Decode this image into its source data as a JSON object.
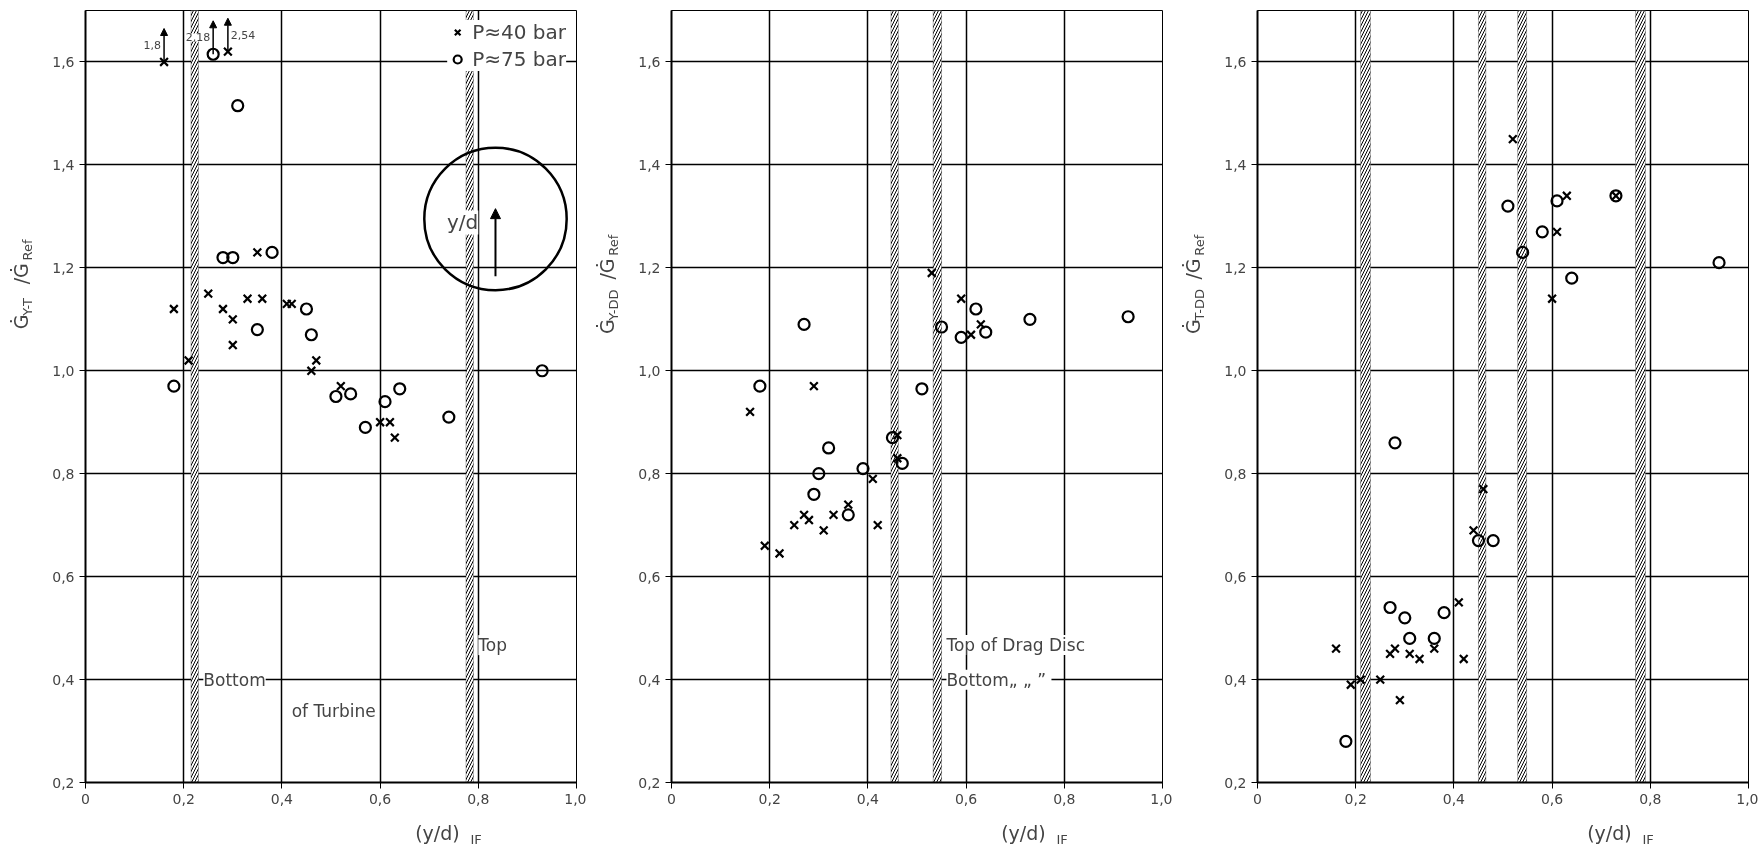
{
  "chart_data": [
    {
      "type": "scatter",
      "xlabel": "(y/d)$_{IF}$",
      "ylabel": "Ġ$_{Y-T}$/Ġ$_{Ref}$",
      "xlim": [
        0,
        1.0
      ],
      "ylim": [
        0.2,
        1.7
      ],
      "xticks": [
        0,
        {
          "value": 0.2,
          "label": "0,2"
        },
        {
          "value": 0.4,
          "label": "0,4"
        },
        {
          "value": 0.6,
          "label": "0,6"
        },
        {
          "value": 0.8,
          "label": "0,8"
        },
        {
          "value": 1.0,
          "label": "1,0"
        }
      ],
      "yticks": [
        {
          "value": 0.2,
          "label": "0,2"
        },
        {
          "value": 0.4,
          "label": "0,4"
        },
        {
          "value": 0.6,
          "label": "0,6"
        },
        {
          "value": 0.8,
          "label": "0,8"
        },
        {
          "value": 1.0,
          "label": "1,0"
        },
        {
          "value": 1.2,
          "label": "1,2"
        },
        {
          "value": 1.4,
          "label": "1,4"
        },
        {
          "value": 1.6,
          "label": "1,6"
        }
      ],
      "grid": true,
      "legend": "top right",
      "series": [
        {
          "name": "P≈40 bar",
          "color": "#000000",
          "marker": "cross",
          "x": [
            0.16,
            0.29,
            0.18,
            0.21,
            0.25,
            0.28,
            0.3,
            0.3,
            0.33,
            0.36,
            0.35,
            0.41,
            0.42,
            0.47,
            0.46,
            0.52,
            0.6,
            0.62,
            0.63
          ],
          "values": [
            1.6,
            1.62,
            1.12,
            1.02,
            1.15,
            1.12,
            1.1,
            1.05,
            1.14,
            1.14,
            1.23,
            1.13,
            1.13,
            1.02,
            1.0,
            0.97,
            0.9,
            0.9,
            0.87
          ]
        },
        {
          "name": "P≈75 bar",
          "color": "#000000",
          "marker": "circle",
          "x": [
            0.26,
            0.31,
            0.28,
            0.3,
            0.35,
            0.38,
            0.45,
            0.46,
            0.18,
            0.51,
            0.54,
            0.57,
            0.61,
            0.64,
            0.74,
            0.93
          ],
          "values": [
            1.615,
            1.515,
            1.22,
            1.22,
            1.08,
            1.23,
            1.12,
            1.07,
            0.97,
            0.95,
            0.955,
            0.89,
            0.94,
            0.965,
            0.91,
            1.0
          ]
        }
      ],
      "bands": [
        {
          "axis": "x",
          "from": 0.215,
          "to": 0.23,
          "label": "Bottom"
        },
        {
          "axis": "x",
          "from": 0.775,
          "to": 0.79,
          "label": "Top"
        }
      ],
      "annotations": [
        "of Turbine",
        "y/d",
        {
          "text": "1,8",
          "x": 0.16,
          "y": 1.6
        },
        {
          "text": "2,18",
          "x": 0.26,
          "y": 1.615
        },
        {
          "text": "2,54",
          "x": 0.29,
          "y": 1.62
        }
      ]
    },
    {
      "type": "scatter",
      "xlabel": "(y/d)$_{IF}$",
      "ylabel": "Ġ$_{Y-DD}$/Ġ$_{Ref}$",
      "xlim": [
        0,
        1.0
      ],
      "ylim": [
        0.2,
        1.7
      ],
      "xticks": [
        0,
        {
          "value": 0.2,
          "label": "0,2"
        },
        {
          "value": 0.4,
          "label": "0,4"
        },
        {
          "value": 0.6,
          "label": "0,6"
        },
        {
          "value": 0.8,
          "label": "0,8"
        },
        {
          "value": 1.0,
          "label": "1,0"
        }
      ],
      "yticks": [
        {
          "value": 0.2,
          "label": "0,2"
        },
        {
          "value": 0.4,
          "label": "0,4"
        },
        {
          "value": 0.6,
          "label": "0,6"
        },
        {
          "value": 0.8,
          "label": "0,8"
        },
        {
          "value": 1.0,
          "label": "1,0"
        },
        {
          "value": 1.2,
          "label": "1,2"
        },
        {
          "value": 1.4,
          "label": "1,4"
        },
        {
          "value": 1.6,
          "label": "1,6"
        }
      ],
      "grid": true,
      "series": [
        {
          "color": "#000000",
          "marker": "cross",
          "x": [
            0.16,
            0.19,
            0.22,
            0.25,
            0.27,
            0.28,
            0.29,
            0.31,
            0.33,
            0.36,
            0.41,
            0.42,
            0.46,
            0.46,
            0.53,
            0.59,
            0.63,
            0.61
          ],
          "values": [
            0.92,
            0.66,
            0.645,
            0.7,
            0.72,
            0.71,
            0.97,
            0.69,
            0.72,
            0.74,
            0.79,
            0.7,
            0.875,
            0.83,
            1.19,
            1.14,
            1.09,
            1.07
          ]
        },
        {
          "color": "#000000",
          "marker": "circle",
          "x": [
            0.18,
            0.27,
            0.32,
            0.3,
            0.29,
            0.36,
            0.39,
            0.45,
            0.47,
            0.51,
            0.55,
            0.59,
            0.62,
            0.64,
            0.73,
            0.93
          ],
          "values": [
            0.97,
            1.09,
            0.85,
            0.8,
            0.76,
            0.72,
            0.81,
            0.87,
            0.82,
            0.965,
            1.085,
            1.065,
            1.12,
            1.075,
            1.1,
            1.105
          ]
        }
      ],
      "bands": [
        {
          "axis": "x",
          "from": 0.447,
          "to": 0.462,
          "label": "Bottom„ „  ”"
        },
        {
          "axis": "x",
          "from": 0.533,
          "to": 0.55,
          "label": "Top of Drag Disc"
        }
      ]
    },
    {
      "type": "scatter",
      "xlabel": "(y/d)$_{IF}$",
      "ylabel": "Ġ$_{T-DD}$/Ġ$_{Ref}$",
      "xlim": [
        0,
        1.0
      ],
      "ylim": [
        0.2,
        1.7
      ],
      "xticks": [
        0,
        {
          "value": 0.2,
          "label": "0,2"
        },
        {
          "value": 0.4,
          "label": "0,4"
        },
        {
          "value": 0.6,
          "label": "0,6"
        },
        {
          "value": 0.8,
          "label": "0,8"
        },
        {
          "value": 1.0,
          "label": "1,0"
        }
      ],
      "yticks": [
        {
          "value": 0.2,
          "label": "0,2"
        },
        {
          "value": 0.4,
          "label": "0,4"
        },
        {
          "value": 0.6,
          "label": "0,6"
        },
        {
          "value": 0.8,
          "label": "0,8"
        },
        {
          "value": 1.0,
          "label": "1,0"
        },
        {
          "value": 1.2,
          "label": "1,2"
        },
        {
          "value": 1.4,
          "label": "1,4"
        },
        {
          "value": 1.6,
          "label": "1,6"
        }
      ],
      "grid": true,
      "series": [
        {
          "color": "#000000",
          "marker": "cross",
          "x": [
            0.16,
            0.19,
            0.21,
            0.25,
            0.27,
            0.28,
            0.29,
            0.31,
            0.33,
            0.36,
            0.41,
            0.42,
            0.44,
            0.46,
            0.52,
            0.6,
            0.61,
            0.63,
            0.73
          ],
          "values": [
            0.46,
            0.39,
            0.4,
            0.4,
            0.45,
            0.46,
            0.36,
            0.45,
            0.44,
            0.46,
            0.55,
            0.44,
            0.69,
            0.77,
            1.45,
            1.14,
            1.27,
            1.34,
            1.34
          ]
        },
        {
          "color": "#000000",
          "marker": "circle",
          "x": [
            0.18,
            0.28,
            0.27,
            0.3,
            0.31,
            0.36,
            0.38,
            0.45,
            0.48,
            0.51,
            0.54,
            0.58,
            0.61,
            0.64,
            0.73,
            0.94
          ],
          "values": [
            0.28,
            0.86,
            0.54,
            0.52,
            0.48,
            0.48,
            0.53,
            0.67,
            0.67,
            1.32,
            1.23,
            1.27,
            1.33,
            1.18,
            1.34,
            1.21
          ]
        }
      ],
      "bands": [
        {
          "axis": "x",
          "from": 0.21,
          "to": 0.23
        },
        {
          "axis": "x",
          "from": 0.45,
          "to": 0.465
        },
        {
          "axis": "x",
          "from": 0.53,
          "to": 0.548
        },
        {
          "axis": "x",
          "from": 0.77,
          "to": 0.79
        }
      ]
    }
  ]
}
